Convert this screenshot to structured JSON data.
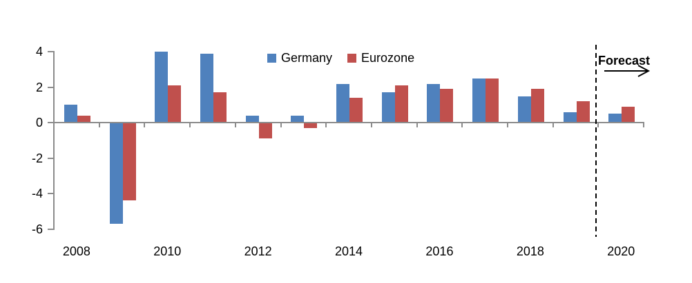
{
  "chart_data": {
    "type": "bar",
    "title": "",
    "categories": [
      "2008",
      "2009",
      "2010",
      "2011",
      "2012",
      "2013",
      "2014",
      "2015",
      "2016",
      "2017",
      "2018",
      "2019",
      "2020"
    ],
    "series": [
      {
        "name": "Germany",
        "color": "#4F81BD",
        "values": [
          1.0,
          -5.7,
          4.0,
          3.9,
          0.4,
          0.4,
          2.2,
          1.7,
          2.2,
          2.5,
          1.5,
          0.6,
          0.5
        ]
      },
      {
        "name": "Eurozone",
        "color": "#C0504D",
        "values": [
          0.4,
          -4.4,
          2.1,
          1.7,
          -0.9,
          -0.3,
          1.4,
          2.1,
          1.9,
          2.5,
          1.9,
          1.2,
          0.9
        ]
      }
    ],
    "ylim": [
      -6,
      4
    ],
    "yticks": [
      4,
      2,
      0,
      -2,
      -4,
      -6
    ],
    "xtick_labels": [
      "2008",
      "2010",
      "2012",
      "2014",
      "2016",
      "2018",
      "2020"
    ],
    "grid": false,
    "legend_position": "top-center-inside",
    "axis_color": "#8B8B8B",
    "annotations": {
      "forecast_label": "Forecast",
      "forecast_divider_between": [
        "2019",
        "2020"
      ],
      "forecast_arrow_direction": "right"
    }
  },
  "legend": {
    "items": [
      {
        "label": "Germany",
        "color": "#4F81BD"
      },
      {
        "label": "Eurozone",
        "color": "#C0504D"
      }
    ]
  }
}
